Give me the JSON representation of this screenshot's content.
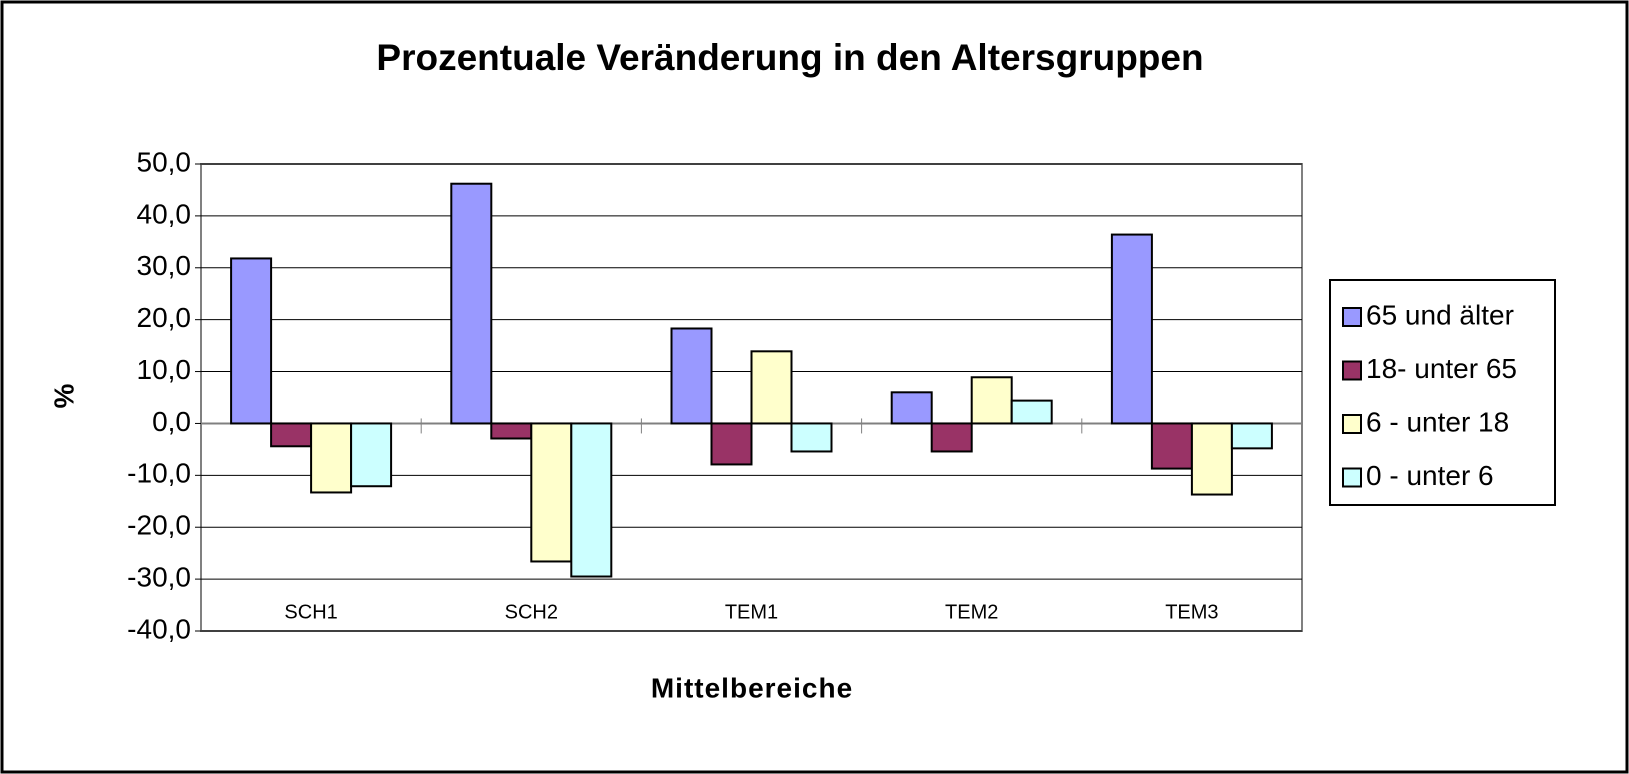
{
  "chart_data": {
    "type": "bar",
    "title": "Prozentuale Veränderung in den Altersgruppen",
    "x_label": "Mittelbereiche",
    "y_label": "%",
    "categories": [
      "SCH1",
      "SCH2",
      "TEM1",
      "TEM2",
      "TEM3"
    ],
    "series": [
      {
        "name": "65 und älter",
        "color": "#9999ff",
        "values": [
          31.8,
          46.2,
          18.3,
          6.0,
          36.4
        ]
      },
      {
        "name": "18- unter 65",
        "color": "#993366",
        "values": [
          -4.4,
          -2.9,
          -7.9,
          -5.4,
          -8.7
        ]
      },
      {
        "name": "6 - unter 18",
        "color": "#ffffcc",
        "values": [
          -13.3,
          -26.6,
          13.9,
          8.9,
          -13.7
        ]
      },
      {
        "name": "0 - unter 6",
        "color": "#ccffff",
        "values": [
          -12.1,
          -29.5,
          -5.4,
          4.4,
          -4.8
        ]
      }
    ],
    "ylim": [
      -40,
      50
    ],
    "yticks": [
      {
        "value": -40,
        "label": "-40,0"
      },
      {
        "value": -30,
        "label": "-30,0"
      },
      {
        "value": -20,
        "label": "-20,0"
      },
      {
        "value": -10,
        "label": "-10,0"
      },
      {
        "value": 0,
        "label": "0,0"
      },
      {
        "value": 10,
        "label": "10,0"
      },
      {
        "value": 20,
        "label": "20,0"
      },
      {
        "value": 30,
        "label": "30,0"
      },
      {
        "value": 40,
        "label": "40,0"
      },
      {
        "value": 50,
        "label": "50,0"
      }
    ],
    "grid": true,
    "legend": "right"
  }
}
